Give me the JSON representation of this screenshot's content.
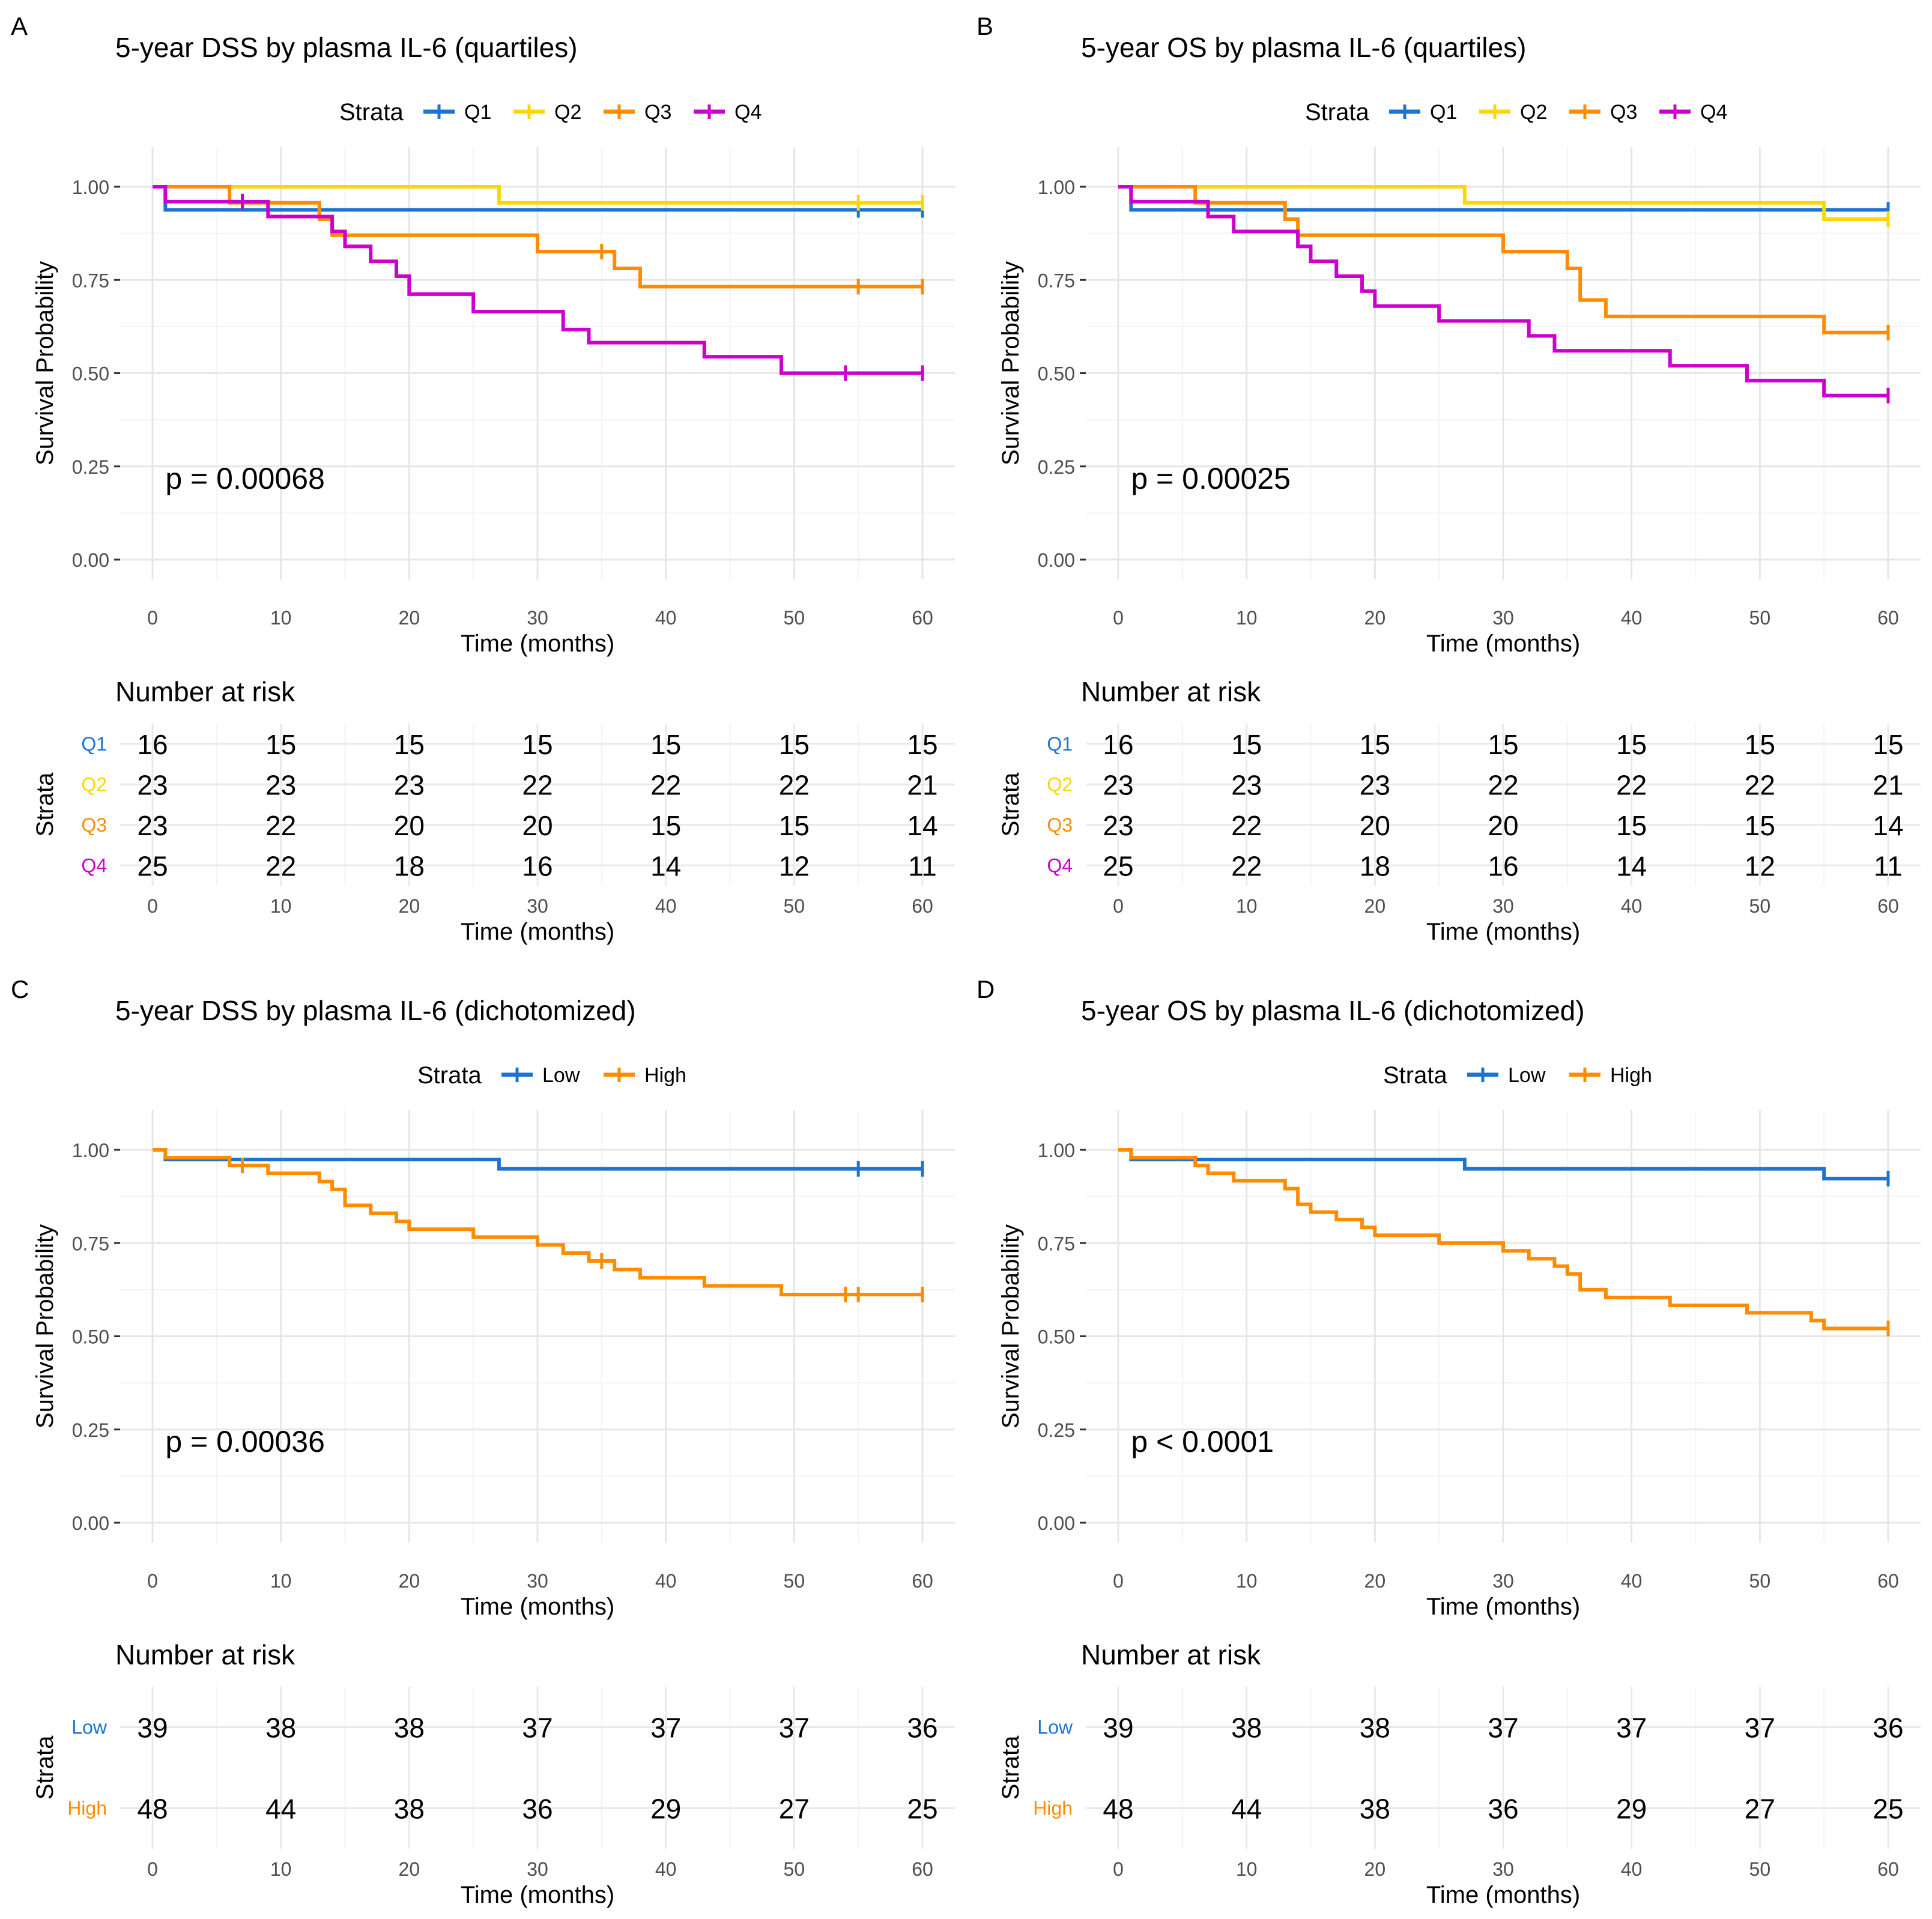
{
  "panels": [
    {
      "letter": "A",
      "title": "5-year DSS by plasma IL-6 (quartiles)",
      "legend_title": "Strata",
      "ylabel": "Survival Probability",
      "xlabel": "Time (months)",
      "pvalue": "p = 0.00068",
      "risk_title": "Number at risk",
      "risk_ylabel": "Strata",
      "risk_xlabel": "Time (months)"
    },
    {
      "letter": "B",
      "title": "5-year OS by plasma IL-6 (quartiles)",
      "legend_title": "Strata",
      "ylabel": "Survival Probability",
      "xlabel": "Time (months)",
      "pvalue": "p = 0.00025",
      "risk_title": "Number at risk",
      "risk_ylabel": "Strata",
      "risk_xlabel": "Time (months)"
    },
    {
      "letter": "C",
      "title": "5-year DSS by plasma IL-6 (dichotomized)",
      "legend_title": "Strata",
      "ylabel": "Survival Probability",
      "xlabel": "Time (months)",
      "pvalue": "p = 0.00036",
      "risk_title": "Number at risk",
      "risk_ylabel": "Strata",
      "risk_xlabel": "Time (months)"
    },
    {
      "letter": "D",
      "title": "5-year OS by plasma IL-6 (dichotomized)",
      "legend_title": "Strata",
      "ylabel": "Survival Probability",
      "xlabel": "Time (months)",
      "pvalue": "p < 0.0001",
      "risk_title": "Number at risk",
      "risk_ylabel": "Strata",
      "risk_xlabel": "Time (months)"
    }
  ],
  "chart_data": [
    {
      "type": "line",
      "subtype": "kaplan-meier",
      "title": "5-year DSS by plasma IL-6 (quartiles)",
      "xlabel": "Time (months)",
      "ylabel": "Survival Probability",
      "xlim": [
        0,
        60
      ],
      "ylim": [
        0,
        1
      ],
      "x_ticks": [
        0,
        10,
        20,
        30,
        40,
        50,
        60
      ],
      "y_ticks": [
        "0.00",
        "0.25",
        "0.50",
        "0.75",
        "1.00"
      ],
      "pvalue": "p = 0.00068",
      "series": [
        {
          "name": "Q1",
          "color": "#1a74d4",
          "steps": [
            [
              0,
              1.0
            ],
            [
              1,
              0.938
            ]
          ],
          "end": 60,
          "censor": [
            [
              55,
              0.938
            ],
            [
              60,
              0.938
            ]
          ]
        },
        {
          "name": "Q2",
          "color": "#ffd700",
          "steps": [
            [
              0,
              1.0
            ],
            [
              27,
              0.957
            ]
          ],
          "end": 60,
          "censor": [
            [
              55,
              0.957
            ],
            [
              60,
              0.957
            ]
          ]
        },
        {
          "name": "Q3",
          "color": "#ff8c00",
          "steps": [
            [
              0,
              1.0
            ],
            [
              6,
              0.957
            ],
            [
              13,
              0.913
            ],
            [
              14,
              0.87
            ],
            [
              30,
              0.826
            ],
            [
              36,
              0.781
            ],
            [
              38,
              0.732
            ]
          ],
          "end": 60,
          "censor": [
            [
              35,
              0.826
            ],
            [
              55,
              0.732
            ],
            [
              60,
              0.732
            ]
          ]
        },
        {
          "name": "Q4",
          "color": "#cc00cc",
          "steps": [
            [
              0,
              1.0
            ],
            [
              1,
              0.96
            ],
            [
              9,
              0.92
            ],
            [
              14,
              0.88
            ],
            [
              15,
              0.84
            ],
            [
              17,
              0.8
            ],
            [
              19,
              0.76
            ],
            [
              20,
              0.712
            ],
            [
              25,
              0.665
            ],
            [
              32,
              0.617
            ],
            [
              34,
              0.582
            ],
            [
              43,
              0.544
            ],
            [
              49,
              0.5
            ]
          ],
          "end": 60,
          "censor": [
            [
              7,
              0.96
            ],
            [
              54,
              0.5
            ],
            [
              60,
              0.5
            ]
          ]
        }
      ],
      "risk_table": {
        "times": [
          0,
          10,
          20,
          30,
          40,
          50,
          60
        ],
        "rows": [
          {
            "label": "Q1",
            "color": "#1a74d4",
            "values": [
              "16",
              "15",
              "15",
              "15",
              "15",
              "15",
              "15"
            ]
          },
          {
            "label": "Q2",
            "color": "#ffd700",
            "values": [
              "23",
              "23",
              "23",
              "22",
              "22",
              "22",
              "21"
            ]
          },
          {
            "label": "Q3",
            "color": "#ff8c00",
            "values": [
              "23",
              "22",
              "20",
              "20",
              "15",
              "15",
              "14"
            ]
          },
          {
            "label": "Q4",
            "color": "#cc00cc",
            "values": [
              "25",
              "22",
              "18",
              "16",
              "14",
              "12",
              "11"
            ]
          }
        ]
      }
    },
    {
      "type": "line",
      "subtype": "kaplan-meier",
      "title": "5-year OS by plasma IL-6 (quartiles)",
      "xlabel": "Time (months)",
      "ylabel": "Survival Probability",
      "xlim": [
        0,
        60
      ],
      "ylim": [
        0,
        1
      ],
      "x_ticks": [
        0,
        10,
        20,
        30,
        40,
        50,
        60
      ],
      "y_ticks": [
        "0.00",
        "0.25",
        "0.50",
        "0.75",
        "1.00"
      ],
      "pvalue": "p = 0.00025",
      "series": [
        {
          "name": "Q1",
          "color": "#1a74d4",
          "steps": [
            [
              0,
              1.0
            ],
            [
              1,
              0.938
            ]
          ],
          "end": 60,
          "censor": [
            [
              60,
              0.938
            ]
          ]
        },
        {
          "name": "Q2",
          "color": "#ffd700",
          "steps": [
            [
              0,
              1.0
            ],
            [
              27,
              0.957
            ],
            [
              55,
              0.913
            ]
          ],
          "end": 60,
          "censor": [
            [
              60,
              0.913
            ]
          ]
        },
        {
          "name": "Q3",
          "color": "#ff8c00",
          "steps": [
            [
              0,
              1.0
            ],
            [
              6,
              0.957
            ],
            [
              13,
              0.913
            ],
            [
              14,
              0.87
            ],
            [
              30,
              0.826
            ],
            [
              35,
              0.781
            ],
            [
              36,
              0.696
            ],
            [
              38,
              0.652
            ],
            [
              55,
              0.609
            ]
          ],
          "end": 60,
          "censor": [
            [
              60,
              0.609
            ]
          ]
        },
        {
          "name": "Q4",
          "color": "#cc00cc",
          "steps": [
            [
              0,
              1.0
            ],
            [
              1,
              0.96
            ],
            [
              7,
              0.92
            ],
            [
              9,
              0.88
            ],
            [
              14,
              0.84
            ],
            [
              15,
              0.8
            ],
            [
              17,
              0.76
            ],
            [
              19,
              0.72
            ],
            [
              20,
              0.68
            ],
            [
              25,
              0.64
            ],
            [
              32,
              0.6
            ],
            [
              34,
              0.56
            ],
            [
              43,
              0.52
            ],
            [
              49,
              0.48
            ],
            [
              55,
              0.44
            ]
          ],
          "end": 60,
          "censor": [
            [
              60,
              0.44
            ]
          ]
        }
      ],
      "risk_table": {
        "times": [
          0,
          10,
          20,
          30,
          40,
          50,
          60
        ],
        "rows": [
          {
            "label": "Q1",
            "color": "#1a74d4",
            "values": [
              "16",
              "15",
              "15",
              "15",
              "15",
              "15",
              "15"
            ]
          },
          {
            "label": "Q2",
            "color": "#ffd700",
            "values": [
              "23",
              "23",
              "23",
              "22",
              "22",
              "22",
              "21"
            ]
          },
          {
            "label": "Q3",
            "color": "#ff8c00",
            "values": [
              "23",
              "22",
              "20",
              "20",
              "15",
              "15",
              "14"
            ]
          },
          {
            "label": "Q4",
            "color": "#cc00cc",
            "values": [
              "25",
              "22",
              "18",
              "16",
              "14",
              "12",
              "11"
            ]
          }
        ]
      }
    },
    {
      "type": "line",
      "subtype": "kaplan-meier",
      "title": "5-year DSS by plasma IL-6 (dichotomized)",
      "xlabel": "Time (months)",
      "ylabel": "Survival Probability",
      "xlim": [
        0,
        60
      ],
      "ylim": [
        0,
        1
      ],
      "x_ticks": [
        0,
        10,
        20,
        30,
        40,
        50,
        60
      ],
      "y_ticks": [
        "0.00",
        "0.25",
        "0.50",
        "0.75",
        "1.00"
      ],
      "pvalue": "p = 0.00036",
      "series": [
        {
          "name": "Low",
          "color": "#1a74d4",
          "steps": [
            [
              0,
              1.0
            ],
            [
              1,
              0.974
            ],
            [
              27,
              0.949
            ]
          ],
          "end": 60,
          "censor": [
            [
              55,
              0.949
            ],
            [
              60,
              0.949
            ]
          ]
        },
        {
          "name": "High",
          "color": "#ff8c00",
          "steps": [
            [
              0,
              1.0
            ],
            [
              1,
              0.979
            ],
            [
              6,
              0.958
            ],
            [
              9,
              0.937
            ],
            [
              13,
              0.915
            ],
            [
              14,
              0.894
            ],
            [
              15,
              0.851
            ],
            [
              17,
              0.83
            ],
            [
              19,
              0.808
            ],
            [
              20,
              0.787
            ],
            [
              25,
              0.766
            ],
            [
              30,
              0.745
            ],
            [
              32,
              0.723
            ],
            [
              34,
              0.702
            ],
            [
              36,
              0.679
            ],
            [
              38,
              0.657
            ],
            [
              43,
              0.635
            ],
            [
              49,
              0.612
            ]
          ],
          "end": 60,
          "censor": [
            [
              7,
              0.958
            ],
            [
              35,
              0.702
            ],
            [
              54,
              0.612
            ],
            [
              55,
              0.612
            ],
            [
              60,
              0.612
            ]
          ]
        }
      ],
      "risk_table": {
        "times": [
          0,
          10,
          20,
          30,
          40,
          50,
          60
        ],
        "rows": [
          {
            "label": "Low",
            "color": "#1a74d4",
            "values": [
              "39",
              "38",
              "38",
              "37",
              "37",
              "37",
              "36"
            ]
          },
          {
            "label": "High",
            "color": "#ff8c00",
            "values": [
              "48",
              "44",
              "38",
              "36",
              "29",
              "27",
              "25"
            ]
          }
        ]
      }
    },
    {
      "type": "line",
      "subtype": "kaplan-meier",
      "title": "5-year OS by plasma IL-6 (dichotomized)",
      "xlabel": "Time (months)",
      "ylabel": "Survival Probability",
      "xlim": [
        0,
        60
      ],
      "ylim": [
        0,
        1
      ],
      "x_ticks": [
        0,
        10,
        20,
        30,
        40,
        50,
        60
      ],
      "y_ticks": [
        "0.00",
        "0.25",
        "0.50",
        "0.75",
        "1.00"
      ],
      "pvalue": "p < 0.0001",
      "series": [
        {
          "name": "Low",
          "color": "#1a74d4",
          "steps": [
            [
              0,
              1.0
            ],
            [
              1,
              0.974
            ],
            [
              27,
              0.949
            ],
            [
              55,
              0.923
            ]
          ],
          "end": 60,
          "censor": [
            [
              60,
              0.923
            ]
          ]
        },
        {
          "name": "High",
          "color": "#ff8c00",
          "steps": [
            [
              0,
              1.0
            ],
            [
              1,
              0.979
            ],
            [
              6,
              0.958
            ],
            [
              7,
              0.937
            ],
            [
              9,
              0.917
            ],
            [
              13,
              0.896
            ],
            [
              14,
              0.854
            ],
            [
              15,
              0.833
            ],
            [
              17,
              0.813
            ],
            [
              19,
              0.792
            ],
            [
              20,
              0.771
            ],
            [
              25,
              0.75
            ],
            [
              30,
              0.729
            ],
            [
              32,
              0.708
            ],
            [
              34,
              0.688
            ],
            [
              35,
              0.667
            ],
            [
              36,
              0.625
            ],
            [
              38,
              0.604
            ],
            [
              43,
              0.583
            ],
            [
              49,
              0.563
            ],
            [
              54,
              0.542
            ],
            [
              55,
              0.521
            ]
          ],
          "end": 60,
          "censor": [
            [
              60,
              0.521
            ]
          ]
        }
      ],
      "risk_table": {
        "times": [
          0,
          10,
          20,
          30,
          40,
          50,
          60
        ],
        "rows": [
          {
            "label": "Low",
            "color": "#1a74d4",
            "values": [
              "39",
              "38",
              "38",
              "37",
              "37",
              "37",
              "36"
            ]
          },
          {
            "label": "High",
            "color": "#ff8c00",
            "values": [
              "48",
              "44",
              "38",
              "36",
              "29",
              "27",
              "25"
            ]
          }
        ]
      }
    }
  ]
}
